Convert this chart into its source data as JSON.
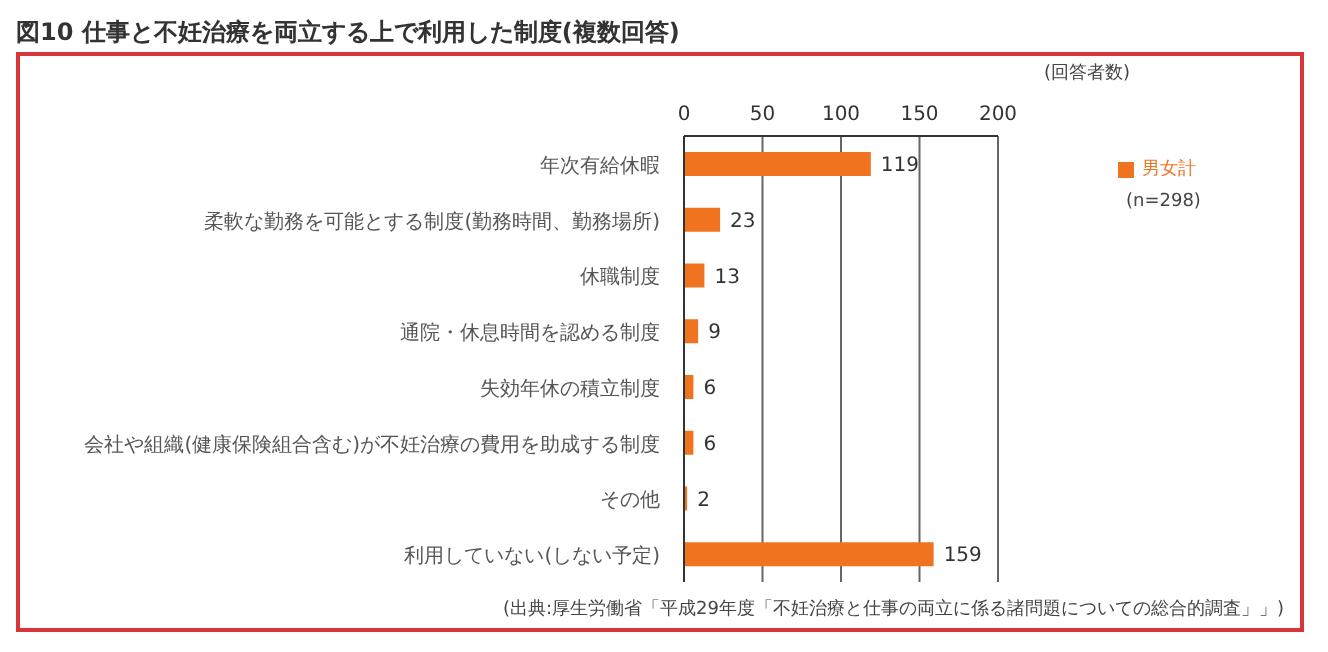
{
  "chart_data": {
    "type": "bar",
    "orientation": "horizontal",
    "title": "図10 仕事と不妊治療を両立する上で利用した制度(複数回答)",
    "xlabel": "(回答者数)",
    "categories": [
      "年次有給休暇",
      "柔軟な勤務を可能とする制度(勤務時間、勤務場所)",
      "休職制度",
      "通院・休息時間を認める制度",
      "失効年休の積立制度",
      "会社や組織(健康保険組合含む)が不妊治療の費用を助成する制度",
      "その他",
      "利用していない(しない予定)"
    ],
    "series": [
      {
        "name": "男女計",
        "color": "#f07320",
        "values": [
          119,
          23,
          13,
          9,
          6,
          6,
          2,
          159
        ]
      }
    ],
    "xlim": [
      0,
      200
    ],
    "xticks": [
      0,
      50,
      100,
      150,
      200
    ],
    "grid": "x",
    "legend": "right",
    "data_labels": true,
    "annotations": [
      "(n=298)",
      "(出典:厚生労働省「平成29年度「不妊治療と仕事の両立に係る諸問題についての総合的調査」」)"
    ]
  }
}
